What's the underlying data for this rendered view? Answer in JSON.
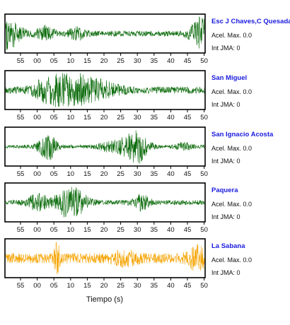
{
  "chart_data": {
    "type": "line",
    "xlabel": "Tiempo (s)",
    "x_tick_labels": [
      "55",
      "00",
      "05",
      "10",
      "15",
      "20",
      "25",
      "30",
      "35",
      "40",
      "45",
      "50"
    ],
    "info_prefix": {
      "accel": "Acel. Max.",
      "jma": "Int JMA:"
    },
    "panels": [
      {
        "station": "Esc J Chaves,C Quesada",
        "max_accel": "0.0",
        "jma": "0",
        "color": "#0b6b0b",
        "bursts": [
          [
            0.0,
            0.9,
            0.05
          ],
          [
            0.99,
            0.9,
            0.04
          ],
          [
            0.2,
            0.35,
            0.03
          ],
          [
            0.36,
            0.3,
            0.03
          ]
        ],
        "noise": 0.16
      },
      {
        "station": "San Miguel",
        "max_accel": "0.0",
        "jma": "0",
        "color": "#0b6b0b",
        "bursts": [
          [
            0.33,
            0.9,
            0.09
          ],
          [
            0.2,
            0.3,
            0.05
          ],
          [
            0.5,
            0.25,
            0.06
          ]
        ],
        "noise": 0.2
      },
      {
        "station": "San Ignacio Acosta",
        "max_accel": "0.0",
        "jma": "0",
        "color": "#0b6b0b",
        "bursts": [
          [
            0.21,
            0.8,
            0.03
          ],
          [
            0.66,
            0.95,
            0.04
          ],
          [
            0.55,
            0.35,
            0.05
          ],
          [
            0.9,
            0.2,
            0.03
          ]
        ],
        "noise": 0.1
      },
      {
        "station": "Paquera",
        "max_accel": "0.0",
        "jma": "0",
        "color": "#0b6b0b",
        "bursts": [
          [
            0.33,
            0.95,
            0.05
          ],
          [
            0.16,
            0.4,
            0.04
          ],
          [
            0.68,
            0.4,
            0.03
          ]
        ],
        "noise": 0.14
      },
      {
        "station": "La Sabana",
        "max_accel": "0.0",
        "jma": "0",
        "color": "#f5a300",
        "bursts": [
          [
            0.26,
            0.95,
            0.01
          ],
          [
            0.96,
            0.6,
            0.03
          ],
          [
            0.6,
            0.3,
            0.04
          ]
        ],
        "noise": 0.3
      }
    ]
  }
}
